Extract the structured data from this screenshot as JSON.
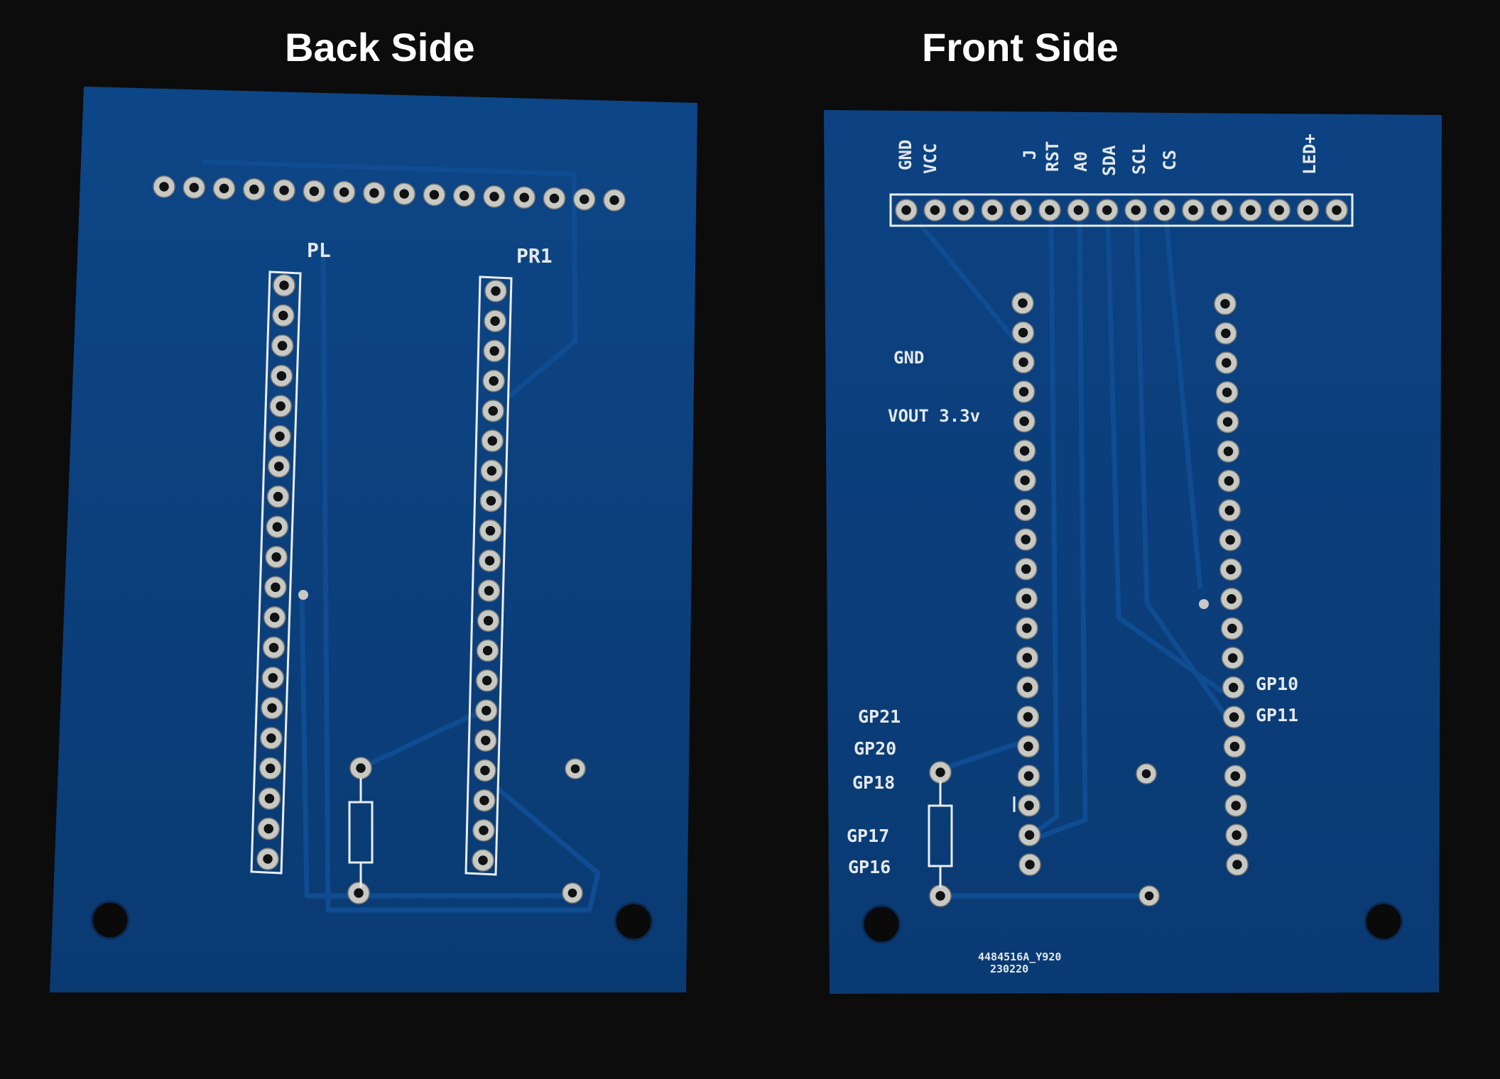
{
  "headings": {
    "back": "Back Side",
    "front": "Front Side"
  },
  "back_board": {
    "header_left_label": "PL",
    "header_right_label": "PR1"
  },
  "front_board": {
    "top_labels": [
      "GND",
      "VCC",
      "J",
      "RST",
      "A0",
      "SDA",
      "SCL",
      "CS",
      "LED+"
    ],
    "left_labels": {
      "gnd": "GND",
      "vout": "VOUT 3.3v",
      "gp21": "GP21",
      "gp20": "GP20",
      "gp18": "GP18",
      "gp17": "GP17",
      "gp16": "GP16"
    },
    "right_labels": {
      "gp10": "GP10",
      "gp11": "GP11"
    },
    "fab_code_line1": "4484516A_Y920",
    "fab_code_line2": "230220"
  },
  "colors": {
    "background": "#0c0c0d",
    "board": "#0b3f7a",
    "trace": "#0f4a8c",
    "silkscreen": "#e4e8ee",
    "pad": "#c9c9c4"
  }
}
